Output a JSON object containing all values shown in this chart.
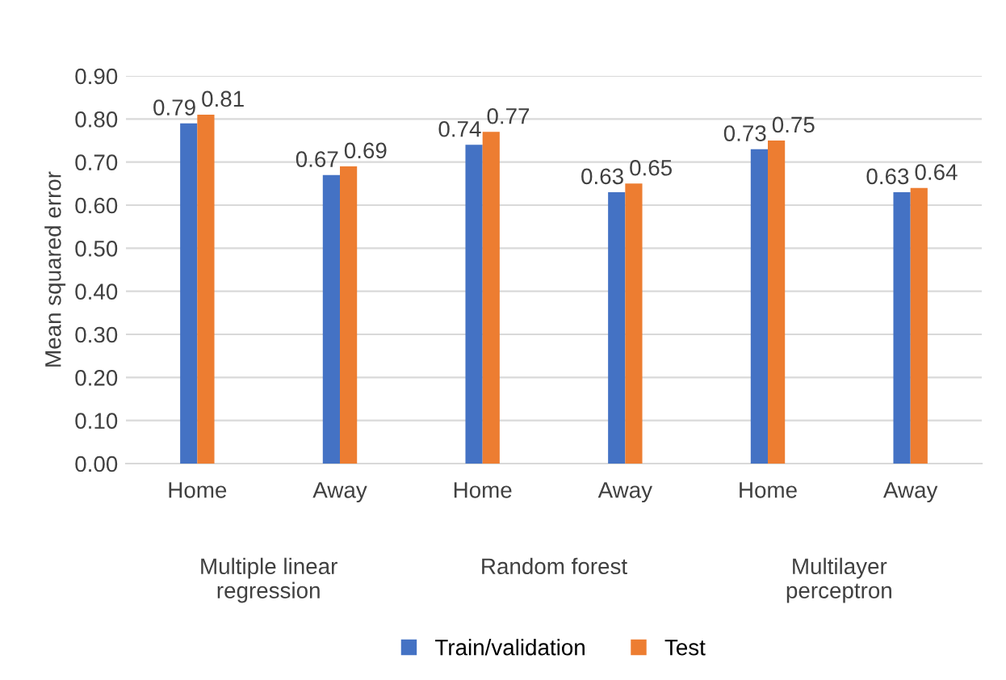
{
  "chart_data": {
    "type": "bar",
    "ylabel": "Mean squared error",
    "categories": [
      "Home",
      "Away",
      "Home",
      "Away",
      "Home",
      "Away"
    ],
    "series": [
      {
        "name": "Train/validation",
        "color": "#4472c4",
        "values": [
          0.79,
          0.67,
          0.74,
          0.63,
          0.73,
          0.63
        ]
      },
      {
        "name": "Test",
        "color": "#ed7d31",
        "values": [
          0.81,
          0.69,
          0.77,
          0.65,
          0.75,
          0.64
        ]
      }
    ],
    "annotations": [
      "Multiple linear\nregression",
      "Random forest",
      "Multilayer\nperceptron"
    ],
    "ylim": [
      0,
      0.9
    ],
    "yticks": [
      {
        "value": 0,
        "label": "0.00"
      },
      {
        "value": 0.1,
        "label": "0.10"
      },
      {
        "value": 0.2,
        "label": "0.20"
      },
      {
        "value": 0.3,
        "label": "0.30"
      },
      {
        "value": 0.4,
        "label": "0.40"
      },
      {
        "value": 0.5,
        "label": "0.50"
      },
      {
        "value": 0.6,
        "label": "0.60"
      },
      {
        "value": 0.7,
        "label": "0.70"
      },
      {
        "value": 0.8,
        "label": "0.80"
      },
      {
        "value": 0.9,
        "label": "0.90"
      }
    ],
    "grid": "y",
    "legend": "bottom",
    "data_labels": true
  }
}
